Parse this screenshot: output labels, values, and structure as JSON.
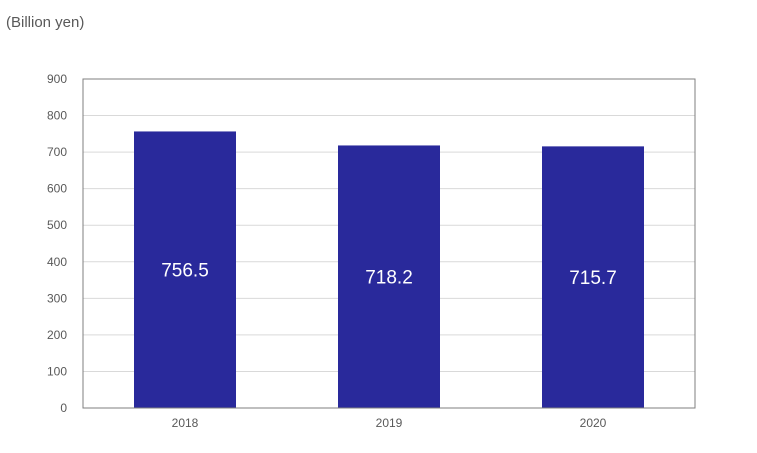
{
  "chart_data": {
    "type": "bar",
    "unit_label": "(Billion yen)",
    "categories": [
      "2018",
      "2019",
      "2020"
    ],
    "values": [
      756.5,
      718.2,
      715.7
    ],
    "data_labels": [
      "756.5",
      "718.2",
      "715.7"
    ],
    "ylim": [
      0,
      900
    ],
    "yticks": [
      0,
      100,
      200,
      300,
      400,
      500,
      600,
      700,
      800,
      900
    ],
    "grid": true,
    "legend": "none",
    "colors": {
      "bar": "#29299b",
      "grid": "#d9d9d9",
      "axis": "#7f7f7f",
      "text": "#595959",
      "label": "#ffffff"
    }
  }
}
